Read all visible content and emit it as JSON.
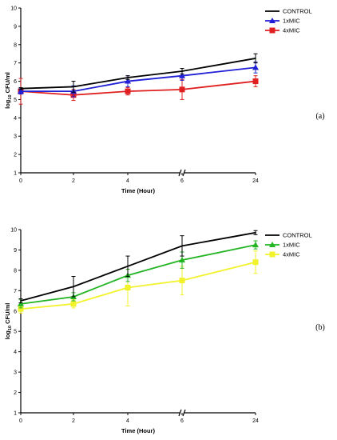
{
  "chart_data": [
    {
      "type": "line",
      "panel_label": "(a)",
      "x": [
        "0",
        "2",
        "4",
        "6",
        "24"
      ],
      "xlabel": "Time (Hour)",
      "ylabel_prefix": "log",
      "ylabel_sub": "10",
      "ylabel_suffix": " CFU/ml",
      "ylim": [
        1,
        10
      ],
      "yticks": [
        "1",
        "2",
        "3",
        "4",
        "5",
        "6",
        "7",
        "8",
        "9",
        "10"
      ],
      "series": [
        {
          "name": "CONTROL",
          "color": "#000000",
          "marker": "none",
          "values": [
            5.6,
            5.7,
            6.2,
            6.55,
            7.25
          ],
          "errors": [
            0.05,
            0.3,
            0.1,
            0.15,
            0.25
          ]
        },
        {
          "name": "1xMIC",
          "color": "#1f1fd6",
          "marker": "triangle",
          "values": [
            5.45,
            5.45,
            6.0,
            6.3,
            6.75
          ],
          "errors": [
            0.15,
            0.3,
            0.3,
            0.25,
            0.3
          ]
        },
        {
          "name": "4xMIC",
          "color": "#e02020",
          "marker": "square",
          "values": [
            5.45,
            5.25,
            5.45,
            5.55,
            6.0
          ],
          "errors": [
            0.7,
            0.3,
            0.2,
            0.55,
            0.3
          ]
        }
      ]
    },
    {
      "type": "line",
      "panel_label": "(b)",
      "x": [
        "0",
        "2",
        "4",
        "6",
        "24"
      ],
      "xlabel": "Time (Hour)",
      "ylabel_prefix": "log",
      "ylabel_sub": "10",
      "ylabel_suffix": " CFU/ml",
      "ylim": [
        1,
        10
      ],
      "yticks": [
        "1",
        "2",
        "3",
        "4",
        "5",
        "6",
        "7",
        "8",
        "9",
        "10"
      ],
      "series": [
        {
          "name": "CONTROL",
          "color": "#000000",
          "marker": "none",
          "values": [
            6.5,
            7.2,
            8.2,
            9.2,
            9.85
          ],
          "errors": [
            0.1,
            0.5,
            0.5,
            0.5,
            0.1
          ]
        },
        {
          "name": "1xMIC",
          "color": "#22b422",
          "marker": "triangle",
          "values": [
            6.35,
            6.7,
            7.75,
            8.5,
            9.25
          ],
          "errors": [
            0.2,
            0.2,
            0.3,
            0.4,
            0.2
          ]
        },
        {
          "name": "4xMIC",
          "color": "#f2f22a",
          "marker": "square",
          "values": [
            6.1,
            6.35,
            7.15,
            7.5,
            8.4
          ],
          "errors": [
            0.2,
            0.2,
            0.9,
            0.7,
            0.55
          ]
        }
      ]
    }
  ]
}
